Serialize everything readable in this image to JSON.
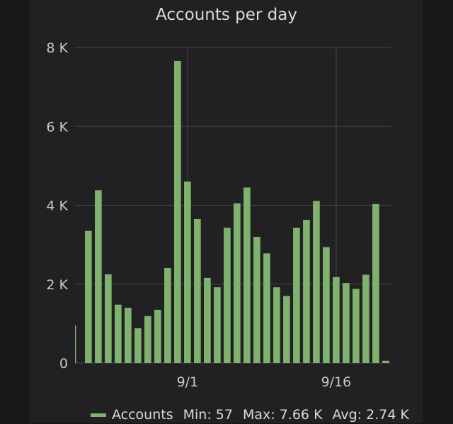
{
  "panel": {
    "title": "Accounts per day"
  },
  "legend": {
    "series_name": "Accounts",
    "min_label": "Min:",
    "min_value": "57",
    "max_label": "Max:",
    "max_value": "7.66 K",
    "avg_label": "Avg:",
    "avg_value": "2.74 K",
    "color": "#7eb26d"
  },
  "chart_data": {
    "type": "bar",
    "title": "Accounts per day",
    "ylim": [
      0,
      8000
    ],
    "y_ticks": [
      0,
      2000,
      4000,
      6000,
      8000
    ],
    "y_tick_labels": [
      "0",
      "2 K",
      "4 K",
      "6 K",
      "8 K"
    ],
    "x_tick_labels": [
      "9/1",
      "9/16"
    ],
    "x_tick_positions": [
      11,
      26
    ],
    "grid": true,
    "series": [
      {
        "name": "Accounts",
        "color": "#7eb26d",
        "values": [
          950,
          3350,
          4380,
          2250,
          1480,
          1400,
          880,
          1190,
          1350,
          2410,
          7660,
          4600,
          3650,
          2160,
          1920,
          3430,
          4050,
          4450,
          3200,
          2780,
          1920,
          1700,
          3430,
          3630,
          4110,
          2940,
          2180,
          2030,
          1880,
          2240,
          4030,
          57
        ]
      }
    ]
  }
}
